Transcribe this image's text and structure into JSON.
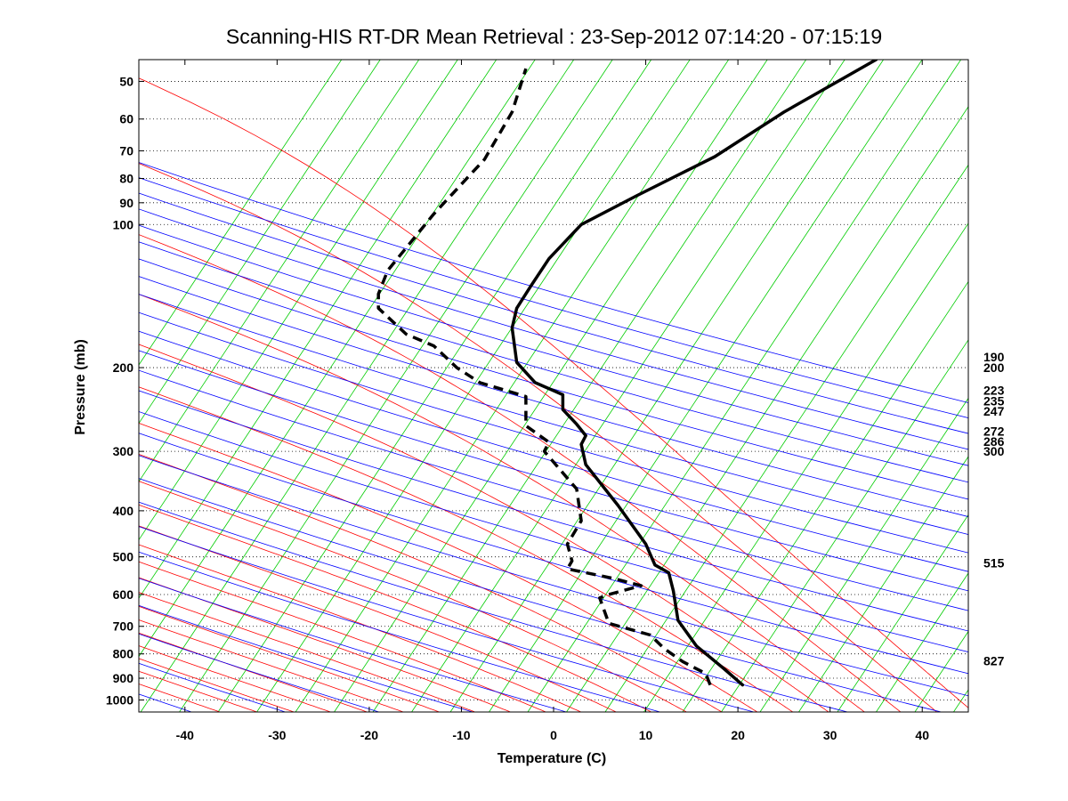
{
  "chart_data": {
    "type": "line",
    "title": "Scanning-HIS RT-DR Mean Retrieval : 23-Sep-2012 07:14:20 - 07:15:19",
    "xlabel": "Temperature (C)",
    "ylabel": "Pressure (mb)",
    "xlim": [
      -45,
      45
    ],
    "ylim": [
      1060,
      45
    ],
    "y_scale": "log",
    "x_ticks": [
      "-40",
      "-30",
      "-20",
      "-10",
      "0",
      "10",
      "20",
      "30",
      "40"
    ],
    "y_ticks": [
      "50",
      "60",
      "70",
      "80",
      "90",
      "100",
      "200",
      "300",
      "400",
      "500",
      "600",
      "700",
      "800",
      "900",
      "1000"
    ],
    "right_labels": [
      "190",
      "200",
      "223",
      "235",
      "247",
      "272",
      "286",
      "300",
      "515",
      "827"
    ],
    "background_lines": {
      "dry_adiabats": {
        "color": "#0000ff"
      },
      "moist_adiabats": {
        "color": "#ff0000"
      },
      "mixing_ratio": {
        "color": "#00cc00"
      },
      "isobar_grid": "dotted"
    },
    "series": [
      {
        "style": "solid",
        "color": "#000000",
        "x": [
          20.5,
          18.5,
          15.5,
          13.5,
          13.0,
          12.5,
          11.0,
          10.0,
          7.0,
          3.5,
          3.0,
          3.5,
          2.5,
          1.0,
          1.0,
          -2.0,
          -4.0,
          -4.5,
          -4.0,
          -2.5,
          -0.5,
          3.0,
          9.0,
          17.5,
          25.0,
          35.0
        ],
        "y": [
          930,
          860,
          770,
          680,
          590,
          540,
          520,
          470,
          390,
          320,
          290,
          278,
          263,
          245,
          228,
          215,
          195,
          165,
          150,
          135,
          118,
          100,
          87,
          72,
          58,
          45
        ]
      },
      {
        "style": "dashed",
        "color": "#000000",
        "x": [
          17.0,
          16.5,
          14.0,
          12.0,
          10.5,
          6.0,
          5.0,
          6.0,
          9.5,
          6.5,
          1.5,
          2.0,
          1.5,
          3.0,
          2.5,
          -1.0,
          -0.5,
          -3.0,
          -3.0,
          -8.0,
          -10.5,
          -13.0,
          -16.0,
          -19.0,
          -19.0,
          -18.0,
          -13.0,
          -7.5,
          -4.5,
          -3.0
        ],
        "y": [
          930,
          880,
          830,
          780,
          730,
          690,
          610,
          600,
          575,
          555,
          530,
          510,
          470,
          420,
          360,
          300,
          287,
          265,
          230,
          215,
          200,
          180,
          170,
          150,
          140,
          125,
          95,
          73,
          58,
          47
        ]
      }
    ]
  }
}
